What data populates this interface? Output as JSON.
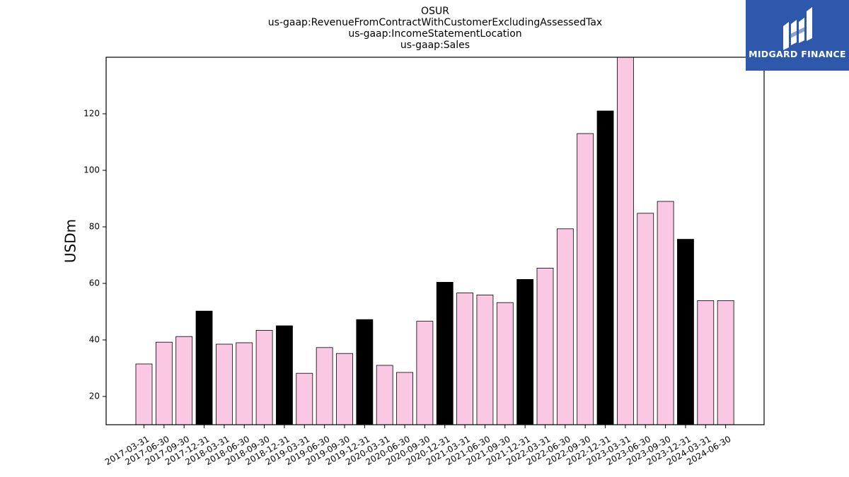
{
  "title_lines": [
    "OSUR",
    "us-gaap:RevenueFromContractWithCustomerExcludingAssessedTax",
    "us-gaap:IncomeStatementLocation",
    "us-gaap:Sales"
  ],
  "logo": {
    "text": "MIDGARD FINANCE",
    "color": "#2d58ac"
  },
  "chart_data": {
    "type": "bar",
    "title": "OSUR",
    "xlabel": "",
    "ylabel": "USDm",
    "ylim": [
      10,
      140
    ],
    "yticks": [
      20,
      40,
      60,
      80,
      100,
      120
    ],
    "grid": false,
    "colors": {
      "quarter": "#fbc8e3",
      "year_end": "#000000",
      "edge": "#000000"
    },
    "categories": [
      "2017-03-31",
      "2017-06-30",
      "2017-09-30",
      "2017-12-31",
      "2018-03-31",
      "2018-06-30",
      "2018-09-30",
      "2018-12-31",
      "2019-03-31",
      "2019-06-30",
      "2019-09-30",
      "2019-12-31",
      "2020-03-31",
      "2020-06-30",
      "2020-09-30",
      "2020-12-31",
      "2021-03-31",
      "2021-06-30",
      "2021-09-30",
      "2021-12-31",
      "2022-03-31",
      "2022-06-30",
      "2022-09-30",
      "2022-12-31",
      "2023-03-31",
      "2023-06-30",
      "2023-09-30",
      "2023-12-31",
      "2024-03-31",
      "2024-06-30"
    ],
    "values": [
      31.5,
      39.2,
      41.2,
      50.2,
      38.5,
      39.0,
      43.4,
      45.0,
      28.2,
      37.3,
      35.2,
      47.2,
      31.0,
      28.5,
      46.6,
      60.4,
      56.6,
      55.9,
      53.2,
      61.4,
      65.4,
      79.3,
      113.0,
      121.0,
      140.0,
      84.8,
      89.0,
      75.6,
      53.9,
      53.9
    ]
  }
}
